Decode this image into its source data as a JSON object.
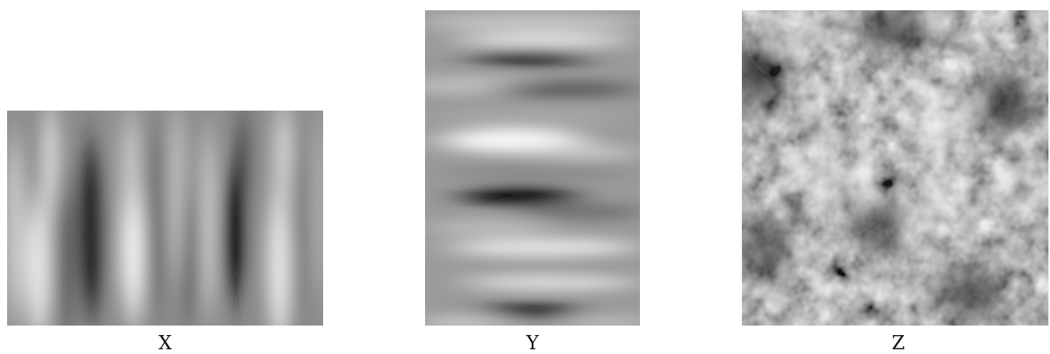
{
  "panels": [
    {
      "id": "x",
      "label": "X",
      "texture": "vertical-stripes"
    },
    {
      "id": "y",
      "label": "Y",
      "texture": "horizontal-stripes"
    },
    {
      "id": "z",
      "label": "Z",
      "texture": "isotropic-blotches"
    }
  ],
  "colors": {
    "background": "#ffffff",
    "midtone": "#8a8a8a",
    "dark": "#0a0a0a",
    "light": "#f2f2f2"
  }
}
